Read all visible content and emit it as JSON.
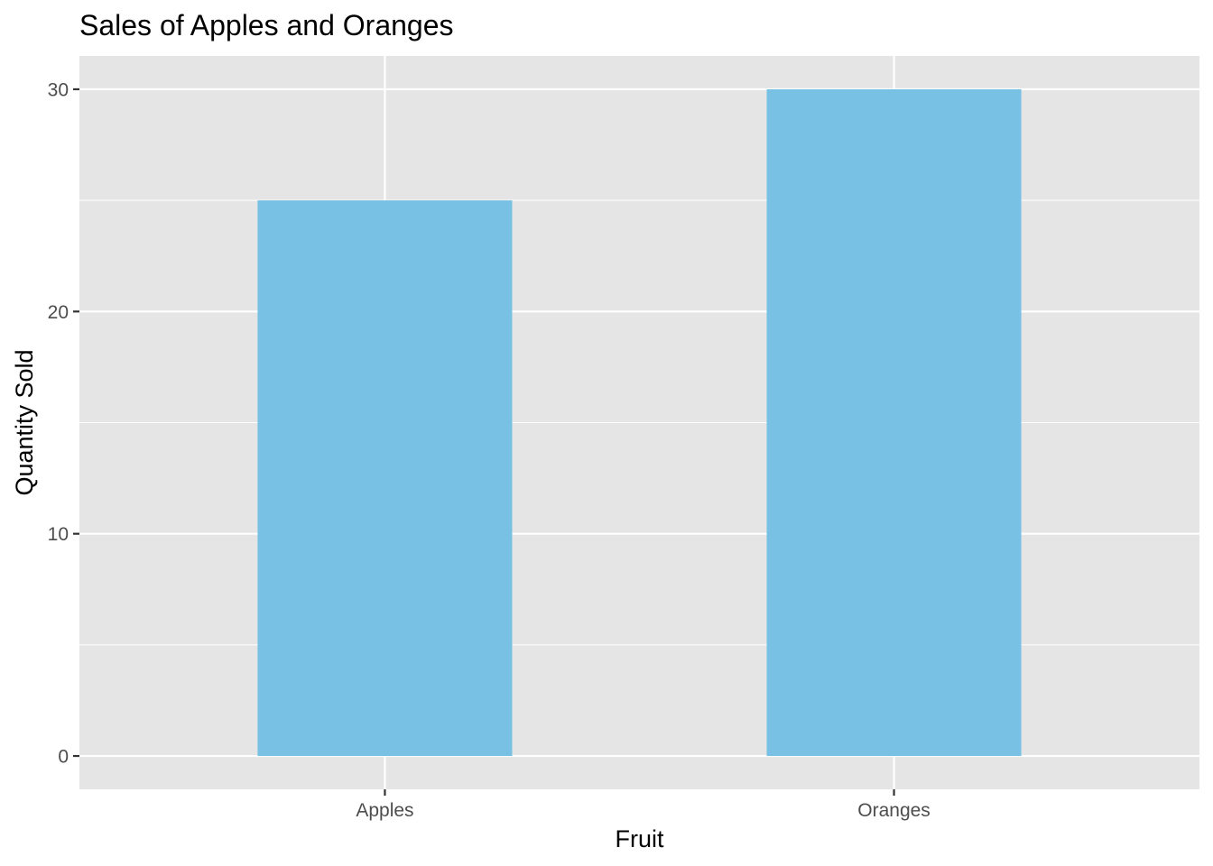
{
  "chart_data": {
    "type": "bar",
    "title": "Sales of Apples and Oranges",
    "xlabel": "Fruit",
    "ylabel": "Quantity Sold",
    "categories": [
      "Apples",
      "Oranges"
    ],
    "values": [
      25,
      30
    ],
    "ylim": [
      -1.5,
      31.5
    ],
    "yticks": [
      0,
      10,
      20,
      30
    ],
    "bar_color": "#78C1E4",
    "panel_background": "#E5E5E5",
    "grid_color": "#FFFFFF",
    "grid": true,
    "legend": "none"
  }
}
